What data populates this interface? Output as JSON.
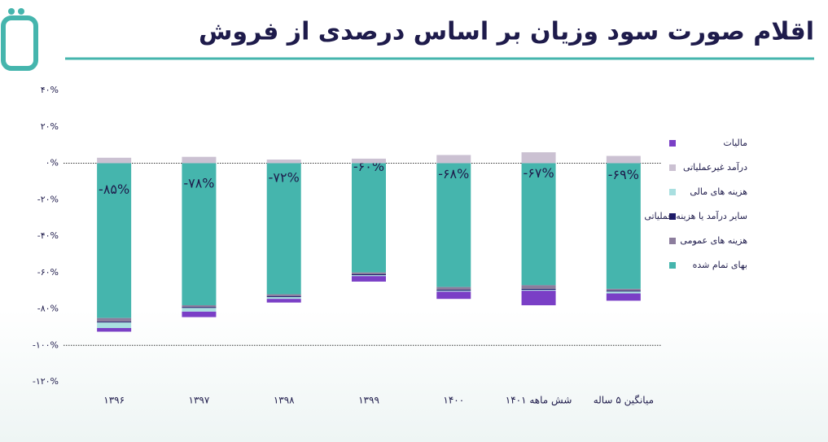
{
  "chart_data": {
    "type": "stacked_bar",
    "title": "اقلام صورت سود وزیان بر اساس درصدی از فروش",
    "categories": [
      "۱۳۹۶",
      "۱۳۹۷",
      "۱۳۹۸",
      "۱۳۹۹",
      "۱۴۰۰",
      "شش ماهه ۱۴۰۱",
      "میانگین ۵ ساله"
    ],
    "series": [
      {
        "name": "مالیات",
        "color": "#7a3fc6",
        "values": [
          -2,
          -3,
          -2,
          -3,
          -4,
          -8,
          -4
        ]
      },
      {
        "name": "درآمد غیرعملیاتی",
        "color": "#cbc1d2",
        "values": [
          3,
          3.5,
          2,
          2.5,
          4.5,
          6,
          4
        ]
      },
      {
        "name": "هزینه های مالی",
        "color": "#a9dfe0",
        "values": [
          -3,
          -2,
          -1,
          -0.5,
          -0.5,
          -0.5,
          -1
        ]
      },
      {
        "name": "سایر درآمد یا هزینه عملیاتی",
        "color": "#1e1b6b",
        "values": [
          -0.5,
          -0.5,
          -0.5,
          -0.5,
          -0.5,
          -0.5,
          -0.5
        ]
      },
      {
        "name": "هزینه های عمومی",
        "color": "#8c7d9d",
        "values": [
          -2,
          -1,
          -1,
          -1,
          -1.5,
          -2,
          -1
        ]
      },
      {
        "name": "بهای تمام شده",
        "color": "#45b5ad",
        "values": [
          -85,
          -78,
          -72,
          -60,
          -68,
          -67,
          -69
        ],
        "value_labels": [
          "-۸۵%",
          "-۷۸%",
          "-۷۲%",
          "-۶۰%",
          "-۶۸%",
          "-۶۷%",
          "-۶۹%"
        ]
      }
    ],
    "ylim": [
      -120,
      40
    ],
    "yticks": [
      {
        "value": 40,
        "label": "۴۰%"
      },
      {
        "value": 20,
        "label": "۲۰%"
      },
      {
        "value": 0,
        "label": "۰%"
      },
      {
        "value": -20,
        "label": "-۲۰%"
      },
      {
        "value": -40,
        "label": "-۴۰%"
      },
      {
        "value": -60,
        "label": "-۶۰%"
      },
      {
        "value": -80,
        "label": "-۸۰%"
      },
      {
        "value": -100,
        "label": "-۱۰۰%"
      },
      {
        "value": -120,
        "label": "-۱۲۰%"
      }
    ],
    "reference_lines": [
      0,
      -100
    ],
    "grid": false
  }
}
